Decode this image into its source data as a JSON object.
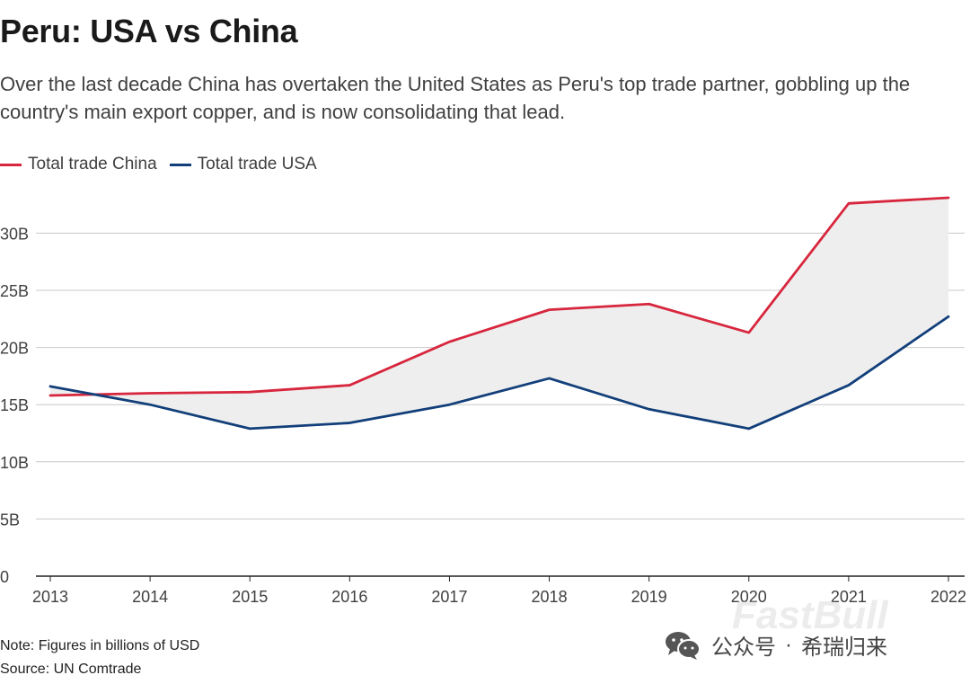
{
  "header": {
    "title": "Peru: USA vs China",
    "subtitle": "Over the last decade China has overtaken the United States as Peru's top trade partner, gobbling up the country's main export copper, and is now consolidating that lead."
  },
  "footer": {
    "note": "Note: Figures in billions of USD",
    "source": "Source: UN Comtrade"
  },
  "watermark": {
    "brand": "FastBull",
    "account": "公众号",
    "separator": "·",
    "name": "希瑞归来",
    "icon": "wechat-icon"
  },
  "colors": {
    "china": "#d7263d",
    "usa": "#123f7a",
    "gap_fill": "#eeeeee",
    "grid": "#c8c8c8",
    "axis": "#222222"
  },
  "chart_data": {
    "type": "line",
    "title": "Peru: USA vs China",
    "xlabel": "",
    "ylabel": "",
    "ylim": [
      0,
      33
    ],
    "yticks": [
      0,
      5,
      10,
      15,
      20,
      25,
      30
    ],
    "ytick_labels": [
      "0",
      "5B",
      "10B",
      "15B",
      "20B",
      "25B",
      "30B"
    ],
    "grid": true,
    "legend_position": "top-left",
    "fill_between": "difference shaded between the two series",
    "x": [
      "2013",
      "2014",
      "2015",
      "2016",
      "2017",
      "2018",
      "2019",
      "2020",
      "2021",
      "2022"
    ],
    "series": [
      {
        "name": "Total trade China",
        "color": "#d7263d",
        "values": [
          15.8,
          16.0,
          16.1,
          16.7,
          20.5,
          23.3,
          23.8,
          21.3,
          32.6,
          33.1
        ]
      },
      {
        "name": "Total trade USA",
        "color": "#123f7a",
        "values": [
          16.6,
          15.0,
          12.9,
          13.4,
          15.0,
          17.3,
          14.6,
          12.9,
          16.7,
          22.7
        ]
      }
    ]
  }
}
